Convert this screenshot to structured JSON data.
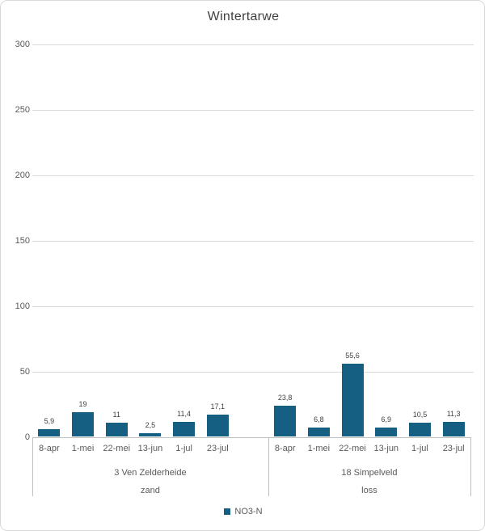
{
  "chart_data": {
    "type": "bar",
    "title": "Wintertarwe",
    "xlabel": "",
    "ylabel": "",
    "ylim": [
      0,
      300
    ],
    "ytick_step": 50,
    "yticks": [
      "0",
      "50",
      "100",
      "150",
      "200",
      "250",
      "300"
    ],
    "grid": true,
    "legend_position": "bottom",
    "series_name": "NO3-N",
    "bar_color": "#156082",
    "categories": [
      "8-apr",
      "1-mei",
      "22-mei",
      "13-jun",
      "1-jul",
      "23-jul"
    ],
    "groups": [
      {
        "name": "3 Ven Zelderheide",
        "soil": "zand",
        "categories": [
          "8-apr",
          "1-mei",
          "22-mei",
          "13-jun",
          "1-jul",
          "23-jul"
        ],
        "values": [
          5.9,
          19,
          11,
          2.5,
          11.4,
          17.1
        ],
        "value_labels": [
          "5,9",
          "19",
          "11",
          "2,5",
          "11,4",
          "17,1"
        ]
      },
      {
        "name": "18 Simpelveld",
        "soil": "loss",
        "categories": [
          "8-apr",
          "1-mei",
          "22-mei",
          "13-jun",
          "1-jul",
          "23-jul"
        ],
        "values": [
          23.8,
          6.8,
          55.6,
          6.9,
          10.5,
          11.3
        ],
        "value_labels": [
          "23,8",
          "6,8",
          "55,6",
          "6,9",
          "10,5",
          "11,3"
        ]
      }
    ]
  },
  "colors": {
    "bar": "#156082",
    "gridline": "#d9d9d9",
    "axis": "#bfbfbf",
    "text_muted": "#595959",
    "text_dark": "#404040",
    "border": "#d9d9d9"
  }
}
